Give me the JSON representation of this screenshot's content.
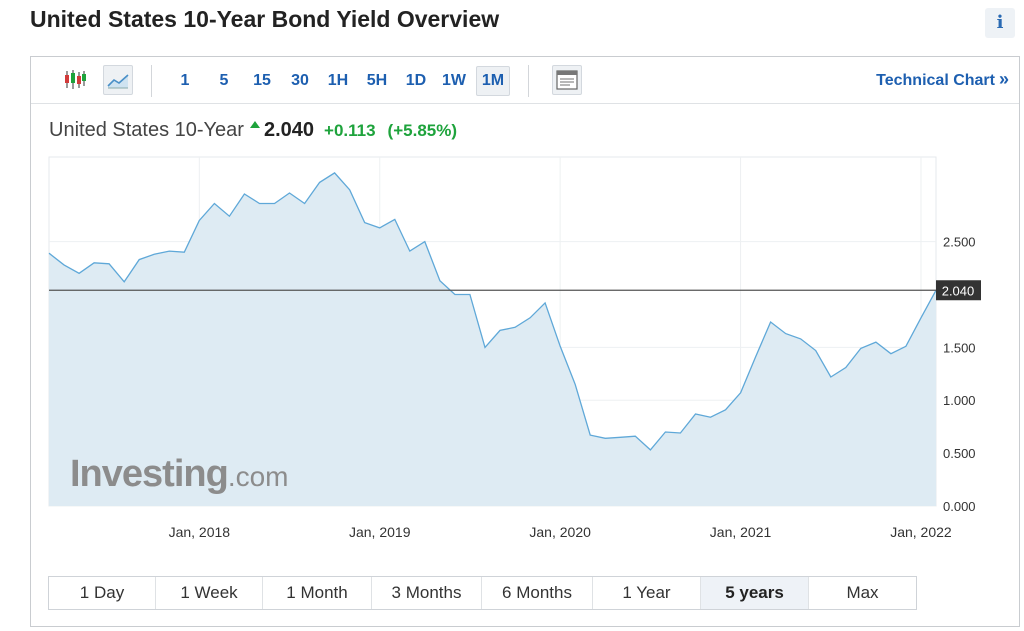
{
  "page": {
    "title": "United States 10-Year Bond Yield Overview",
    "info_icon": "i"
  },
  "toolbar": {
    "intervals": [
      {
        "label": "1",
        "active": false
      },
      {
        "label": "5",
        "active": false
      },
      {
        "label": "15",
        "active": false
      },
      {
        "label": "30",
        "active": false
      },
      {
        "label": "1H",
        "active": false
      },
      {
        "label": "5H",
        "active": false
      },
      {
        "label": "1D",
        "active": false
      },
      {
        "label": "1W",
        "active": false
      },
      {
        "label": "1M",
        "active": true
      }
    ],
    "technical_chart_label": "Technical Chart",
    "technical_chart_arrow": "»",
    "icons": [
      "candlestick-icon",
      "area-chart-icon",
      "chart-settings-icon"
    ]
  },
  "quote": {
    "name": "United States 10-Year",
    "price": "2.040",
    "change": "+0.113",
    "change_pct": "(+5.85%)",
    "direction": "up"
  },
  "watermark": {
    "brand": "Investing",
    "suffix": ".com"
  },
  "ranges": [
    {
      "label": "1 Day",
      "active": false
    },
    {
      "label": "1 Week",
      "active": false
    },
    {
      "label": "1 Month",
      "active": false
    },
    {
      "label": "3 Months",
      "active": false
    },
    {
      "label": "6 Months",
      "active": false
    },
    {
      "label": "1 Year",
      "active": false
    },
    {
      "label": "5 years",
      "active": true
    },
    {
      "label": "Max",
      "active": false
    }
  ],
  "colors": {
    "line": "#5fa8d8",
    "fill": "#deebf3",
    "up": "#1ea33c",
    "link": "#1d5fb0",
    "current_label_bg": "#333333"
  },
  "chart_data": {
    "type": "area",
    "x": [
      "2017-03",
      "2017-04",
      "2017-05",
      "2017-06",
      "2017-07",
      "2017-08",
      "2017-09",
      "2017-10",
      "2017-11",
      "2017-12",
      "2018-01",
      "2018-02",
      "2018-03",
      "2018-04",
      "2018-05",
      "2018-06",
      "2018-07",
      "2018-08",
      "2018-09",
      "2018-10",
      "2018-11",
      "2018-12",
      "2019-01",
      "2019-02",
      "2019-03",
      "2019-04",
      "2019-05",
      "2019-06",
      "2019-07",
      "2019-08",
      "2019-09",
      "2019-10",
      "2019-11",
      "2019-12",
      "2020-01",
      "2020-02",
      "2020-03",
      "2020-04",
      "2020-05",
      "2020-06",
      "2020-07",
      "2020-08",
      "2020-09",
      "2020-10",
      "2020-11",
      "2020-12",
      "2021-01",
      "2021-02",
      "2021-03",
      "2021-04",
      "2021-05",
      "2021-06",
      "2021-07",
      "2021-08",
      "2021-09",
      "2021-10",
      "2021-11",
      "2021-12",
      "2022-01",
      "2022-02"
    ],
    "values": [
      2.39,
      2.28,
      2.2,
      2.3,
      2.29,
      2.12,
      2.33,
      2.38,
      2.41,
      2.4,
      2.7,
      2.86,
      2.74,
      2.95,
      2.86,
      2.86,
      2.96,
      2.86,
      3.06,
      3.15,
      2.99,
      2.68,
      2.63,
      2.71,
      2.41,
      2.5,
      2.13,
      2.0,
      2.0,
      1.5,
      1.66,
      1.69,
      1.78,
      1.92,
      1.51,
      1.15,
      0.67,
      0.64,
      0.65,
      0.66,
      0.53,
      0.7,
      0.69,
      0.87,
      0.84,
      0.91,
      1.07,
      1.41,
      1.74,
      1.63,
      1.58,
      1.47,
      1.22,
      1.31,
      1.49,
      1.55,
      1.44,
      1.51,
      1.78,
      2.04
    ],
    "current_value": "2.040",
    "x_tick_labels": [
      {
        "label": "Jan, 2018",
        "x": "2018-01"
      },
      {
        "label": "Jan, 2019",
        "x": "2019-01"
      },
      {
        "label": "Jan, 2020",
        "x": "2020-01"
      },
      {
        "label": "Jan, 2021",
        "x": "2021-01"
      },
      {
        "label": "Jan, 2022",
        "x": "2022-01"
      }
    ],
    "y_ticks": [
      "0.000",
      "0.500",
      "1.000",
      "1.500",
      "2.500"
    ],
    "ylim": [
      0,
      3.3
    ],
    "grid": true
  }
}
